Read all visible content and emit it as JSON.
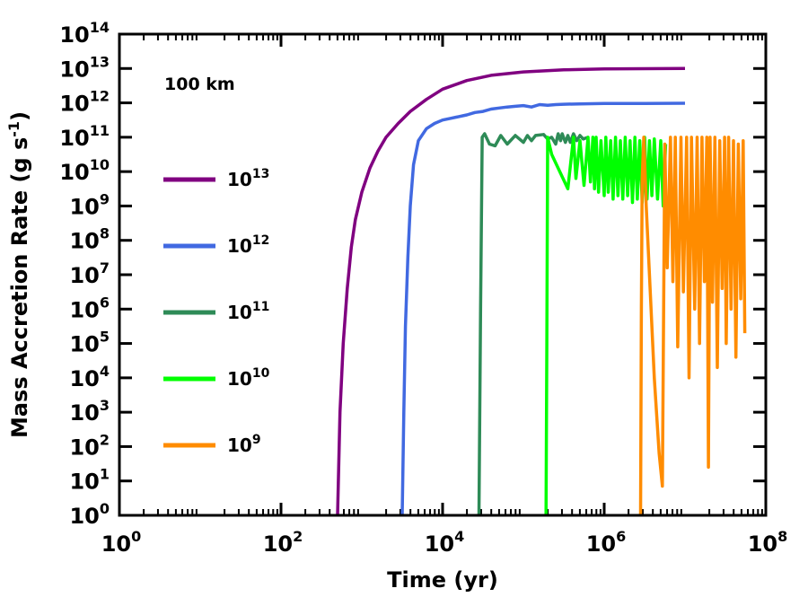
{
  "chart_data": {
    "type": "line",
    "title": "",
    "annotation": "100 km",
    "xlabel": "Time (yr)",
    "ylabel": "Mass Accretion Rate (g s-1)",
    "ylabel_parts": {
      "main": "Mass Accretion Rate (g s",
      "sup": "-1",
      "tail": ")"
    },
    "xscale": "log",
    "yscale": "log",
    "xlim": [
      1,
      100000000
    ],
    "ylim": [
      1,
      100000000000000
    ],
    "x_ticks": [
      {
        "exp": 0,
        "label_base": "10",
        "label_exp": "0"
      },
      {
        "exp": 2,
        "label_base": "10",
        "label_exp": "2"
      },
      {
        "exp": 4,
        "label_base": "10",
        "label_exp": "4"
      },
      {
        "exp": 6,
        "label_base": "10",
        "label_exp": "6"
      },
      {
        "exp": 8,
        "label_base": "10",
        "label_exp": "8"
      }
    ],
    "y_ticks": [
      {
        "exp": 0,
        "label_base": "10",
        "label_exp": "0"
      },
      {
        "exp": 1,
        "label_base": "10",
        "label_exp": "1"
      },
      {
        "exp": 2,
        "label_base": "10",
        "label_exp": "2"
      },
      {
        "exp": 3,
        "label_base": "10",
        "label_exp": "3"
      },
      {
        "exp": 4,
        "label_base": "10",
        "label_exp": "4"
      },
      {
        "exp": 5,
        "label_base": "10",
        "label_exp": "5"
      },
      {
        "exp": 6,
        "label_base": "10",
        "label_exp": "6"
      },
      {
        "exp": 7,
        "label_base": "10",
        "label_exp": "7"
      },
      {
        "exp": 8,
        "label_base": "10",
        "label_exp": "8"
      },
      {
        "exp": 9,
        "label_base": "10",
        "label_exp": "9"
      },
      {
        "exp": 10,
        "label_base": "10",
        "label_exp": "10"
      },
      {
        "exp": 11,
        "label_base": "10",
        "label_exp": "11"
      },
      {
        "exp": 12,
        "label_base": "10",
        "label_exp": "12"
      },
      {
        "exp": 13,
        "label_base": "10",
        "label_exp": "13"
      },
      {
        "exp": 14,
        "label_base": "10",
        "label_exp": "14"
      }
    ],
    "legend_position": "left",
    "series": [
      {
        "name": "10^13",
        "label_base": "10",
        "label_exp": "13",
        "color": "#800080",
        "points_log": [
          [
            2.7,
            0
          ],
          [
            2.73,
            3
          ],
          [
            2.77,
            5
          ],
          [
            2.82,
            6.6
          ],
          [
            2.87,
            7.8
          ],
          [
            2.92,
            8.6
          ],
          [
            3.0,
            9.4
          ],
          [
            3.1,
            10.1
          ],
          [
            3.2,
            10.6
          ],
          [
            3.3,
            11.0
          ],
          [
            3.45,
            11.4
          ],
          [
            3.6,
            11.75
          ],
          [
            3.8,
            12.1
          ],
          [
            4.0,
            12.4
          ],
          [
            4.3,
            12.65
          ],
          [
            4.6,
            12.8
          ],
          [
            5.0,
            12.9
          ],
          [
            5.5,
            12.96
          ],
          [
            6.0,
            12.99
          ],
          [
            7.0,
            13.0
          ]
        ]
      },
      {
        "name": "10^12",
        "label_base": "10",
        "label_exp": "12",
        "color": "#4169E1",
        "points_log": [
          [
            3.5,
            0
          ],
          [
            3.52,
            3
          ],
          [
            3.54,
            5.5
          ],
          [
            3.57,
            7.5
          ],
          [
            3.6,
            9
          ],
          [
            3.64,
            10.2
          ],
          [
            3.7,
            10.9
          ],
          [
            3.8,
            11.25
          ],
          [
            3.9,
            11.4
          ],
          [
            4.0,
            11.5
          ],
          [
            4.1,
            11.55
          ],
          [
            4.2,
            11.6
          ],
          [
            4.3,
            11.65
          ],
          [
            4.4,
            11.72
          ],
          [
            4.5,
            11.75
          ],
          [
            4.6,
            11.82
          ],
          [
            4.7,
            11.85
          ],
          [
            4.8,
            11.88
          ],
          [
            4.9,
            11.9
          ],
          [
            5.0,
            11.92
          ],
          [
            5.1,
            11.88
          ],
          [
            5.2,
            11.95
          ],
          [
            5.3,
            11.93
          ],
          [
            5.4,
            11.95
          ],
          [
            5.5,
            11.96
          ],
          [
            5.7,
            11.97
          ],
          [
            6.0,
            11.98
          ],
          [
            6.5,
            11.98
          ],
          [
            7.0,
            11.99
          ]
        ]
      },
      {
        "name": "10^11",
        "label_base": "10",
        "label_exp": "11",
        "color": "#2E8B57",
        "points_log": [
          [
            4.45,
            0
          ],
          [
            4.47,
            6
          ],
          [
            4.49,
            11.0
          ],
          [
            4.52,
            11.1
          ],
          [
            4.58,
            10.8
          ],
          [
            4.65,
            10.75
          ],
          [
            4.72,
            11.05
          ],
          [
            4.8,
            10.8
          ],
          [
            4.9,
            11.05
          ],
          [
            5.0,
            10.85
          ],
          [
            5.05,
            11.05
          ],
          [
            5.1,
            10.9
          ],
          [
            5.15,
            11.05
          ],
          [
            5.25,
            11.08
          ],
          [
            5.3,
            10.95
          ],
          [
            5.35,
            11.0
          ],
          [
            5.4,
            10.8
          ],
          [
            5.43,
            11.1
          ],
          [
            5.46,
            10.9
          ],
          [
            5.48,
            11.1
          ],
          [
            5.52,
            10.85
          ],
          [
            5.55,
            11.05
          ],
          [
            5.58,
            10.85
          ],
          [
            5.62,
            11.1
          ],
          [
            5.66,
            10.9
          ],
          [
            5.7,
            11.05
          ],
          [
            5.74,
            10.95
          ],
          [
            5.8,
            11.0
          ]
        ]
      },
      {
        "name": "10^10",
        "label_base": "10",
        "label_exp": "10",
        "color": "#00FF00",
        "points_log": [
          [
            5.28,
            0
          ],
          [
            5.29,
            5
          ],
          [
            5.3,
            11.0
          ],
          [
            5.35,
            10.5
          ],
          [
            5.45,
            10.0
          ],
          [
            5.55,
            9.5
          ],
          [
            5.62,
            11.0
          ],
          [
            5.65,
            9.8
          ],
          [
            5.7,
            10.9
          ],
          [
            5.75,
            9.6
          ],
          [
            5.8,
            11.0
          ],
          [
            5.83,
            9.7
          ],
          [
            5.86,
            11.0
          ],
          [
            5.88,
            9.5
          ],
          [
            5.9,
            11.0
          ],
          [
            5.93,
            9.4
          ],
          [
            5.96,
            10.9
          ],
          [
            6.0,
            9.3
          ],
          [
            6.02,
            11.0
          ],
          [
            6.05,
            9.4
          ],
          [
            6.08,
            10.9
          ],
          [
            6.11,
            9.2
          ],
          [
            6.14,
            11.0
          ],
          [
            6.17,
            9.3
          ],
          [
            6.2,
            10.9
          ],
          [
            6.23,
            9.2
          ],
          [
            6.26,
            11.0
          ],
          [
            6.29,
            9.3
          ],
          [
            6.32,
            10.9
          ],
          [
            6.35,
            9.1
          ],
          [
            6.38,
            11.0
          ],
          [
            6.41,
            9.2
          ],
          [
            6.44,
            10.9
          ],
          [
            6.47,
            9.1
          ],
          [
            6.5,
            11.0
          ],
          [
            6.53,
            9.2
          ],
          [
            6.56,
            10.9
          ],
          [
            6.59,
            9.3
          ],
          [
            6.62,
            10.95
          ],
          [
            6.66,
            9.2
          ],
          [
            6.7,
            10.9
          ],
          [
            6.73,
            9.0
          ],
          [
            6.76,
            10.8
          ]
        ]
      },
      {
        "name": "10^9",
        "label_base": "10",
        "label_exp": "9",
        "color": "#FF8C00",
        "points_log": [
          [
            6.45,
            0
          ],
          [
            6.46,
            6
          ],
          [
            6.47,
            9.8
          ],
          [
            6.49,
            11.0
          ],
          [
            6.52,
            9.0
          ],
          [
            6.57,
            6.5
          ],
          [
            6.62,
            4.0
          ],
          [
            6.68,
            1.8
          ],
          [
            6.72,
            0.85
          ],
          [
            6.75,
            10.8
          ],
          [
            6.78,
            7.2
          ],
          [
            6.82,
            11.0
          ],
          [
            6.85,
            6.8
          ],
          [
            6.88,
            11.0
          ],
          [
            6.91,
            4.9
          ],
          [
            6.95,
            11.0
          ],
          [
            6.98,
            6.5
          ],
          [
            7.02,
            11.0
          ],
          [
            7.05,
            4.0
          ],
          [
            7.08,
            11.0
          ],
          [
            7.12,
            6.0
          ],
          [
            7.15,
            11.0
          ],
          [
            7.18,
            5.0
          ],
          [
            7.21,
            11.0
          ],
          [
            7.24,
            6.8
          ],
          [
            7.27,
            11.0
          ],
          [
            7.29,
            1.4
          ],
          [
            7.31,
            11.0
          ],
          [
            7.34,
            6.2
          ],
          [
            7.37,
            11.0
          ],
          [
            7.4,
            4.3
          ],
          [
            7.43,
            10.9
          ],
          [
            7.46,
            6.6
          ],
          [
            7.49,
            11.0
          ],
          [
            7.51,
            5.0
          ],
          [
            7.54,
            11.0
          ],
          [
            7.57,
            6.0
          ],
          [
            7.6,
            10.9
          ],
          [
            7.63,
            4.6
          ],
          [
            7.66,
            10.8
          ],
          [
            7.69,
            6.3
          ],
          [
            7.72,
            10.9
          ],
          [
            7.74,
            5.3
          ]
        ]
      }
    ]
  }
}
